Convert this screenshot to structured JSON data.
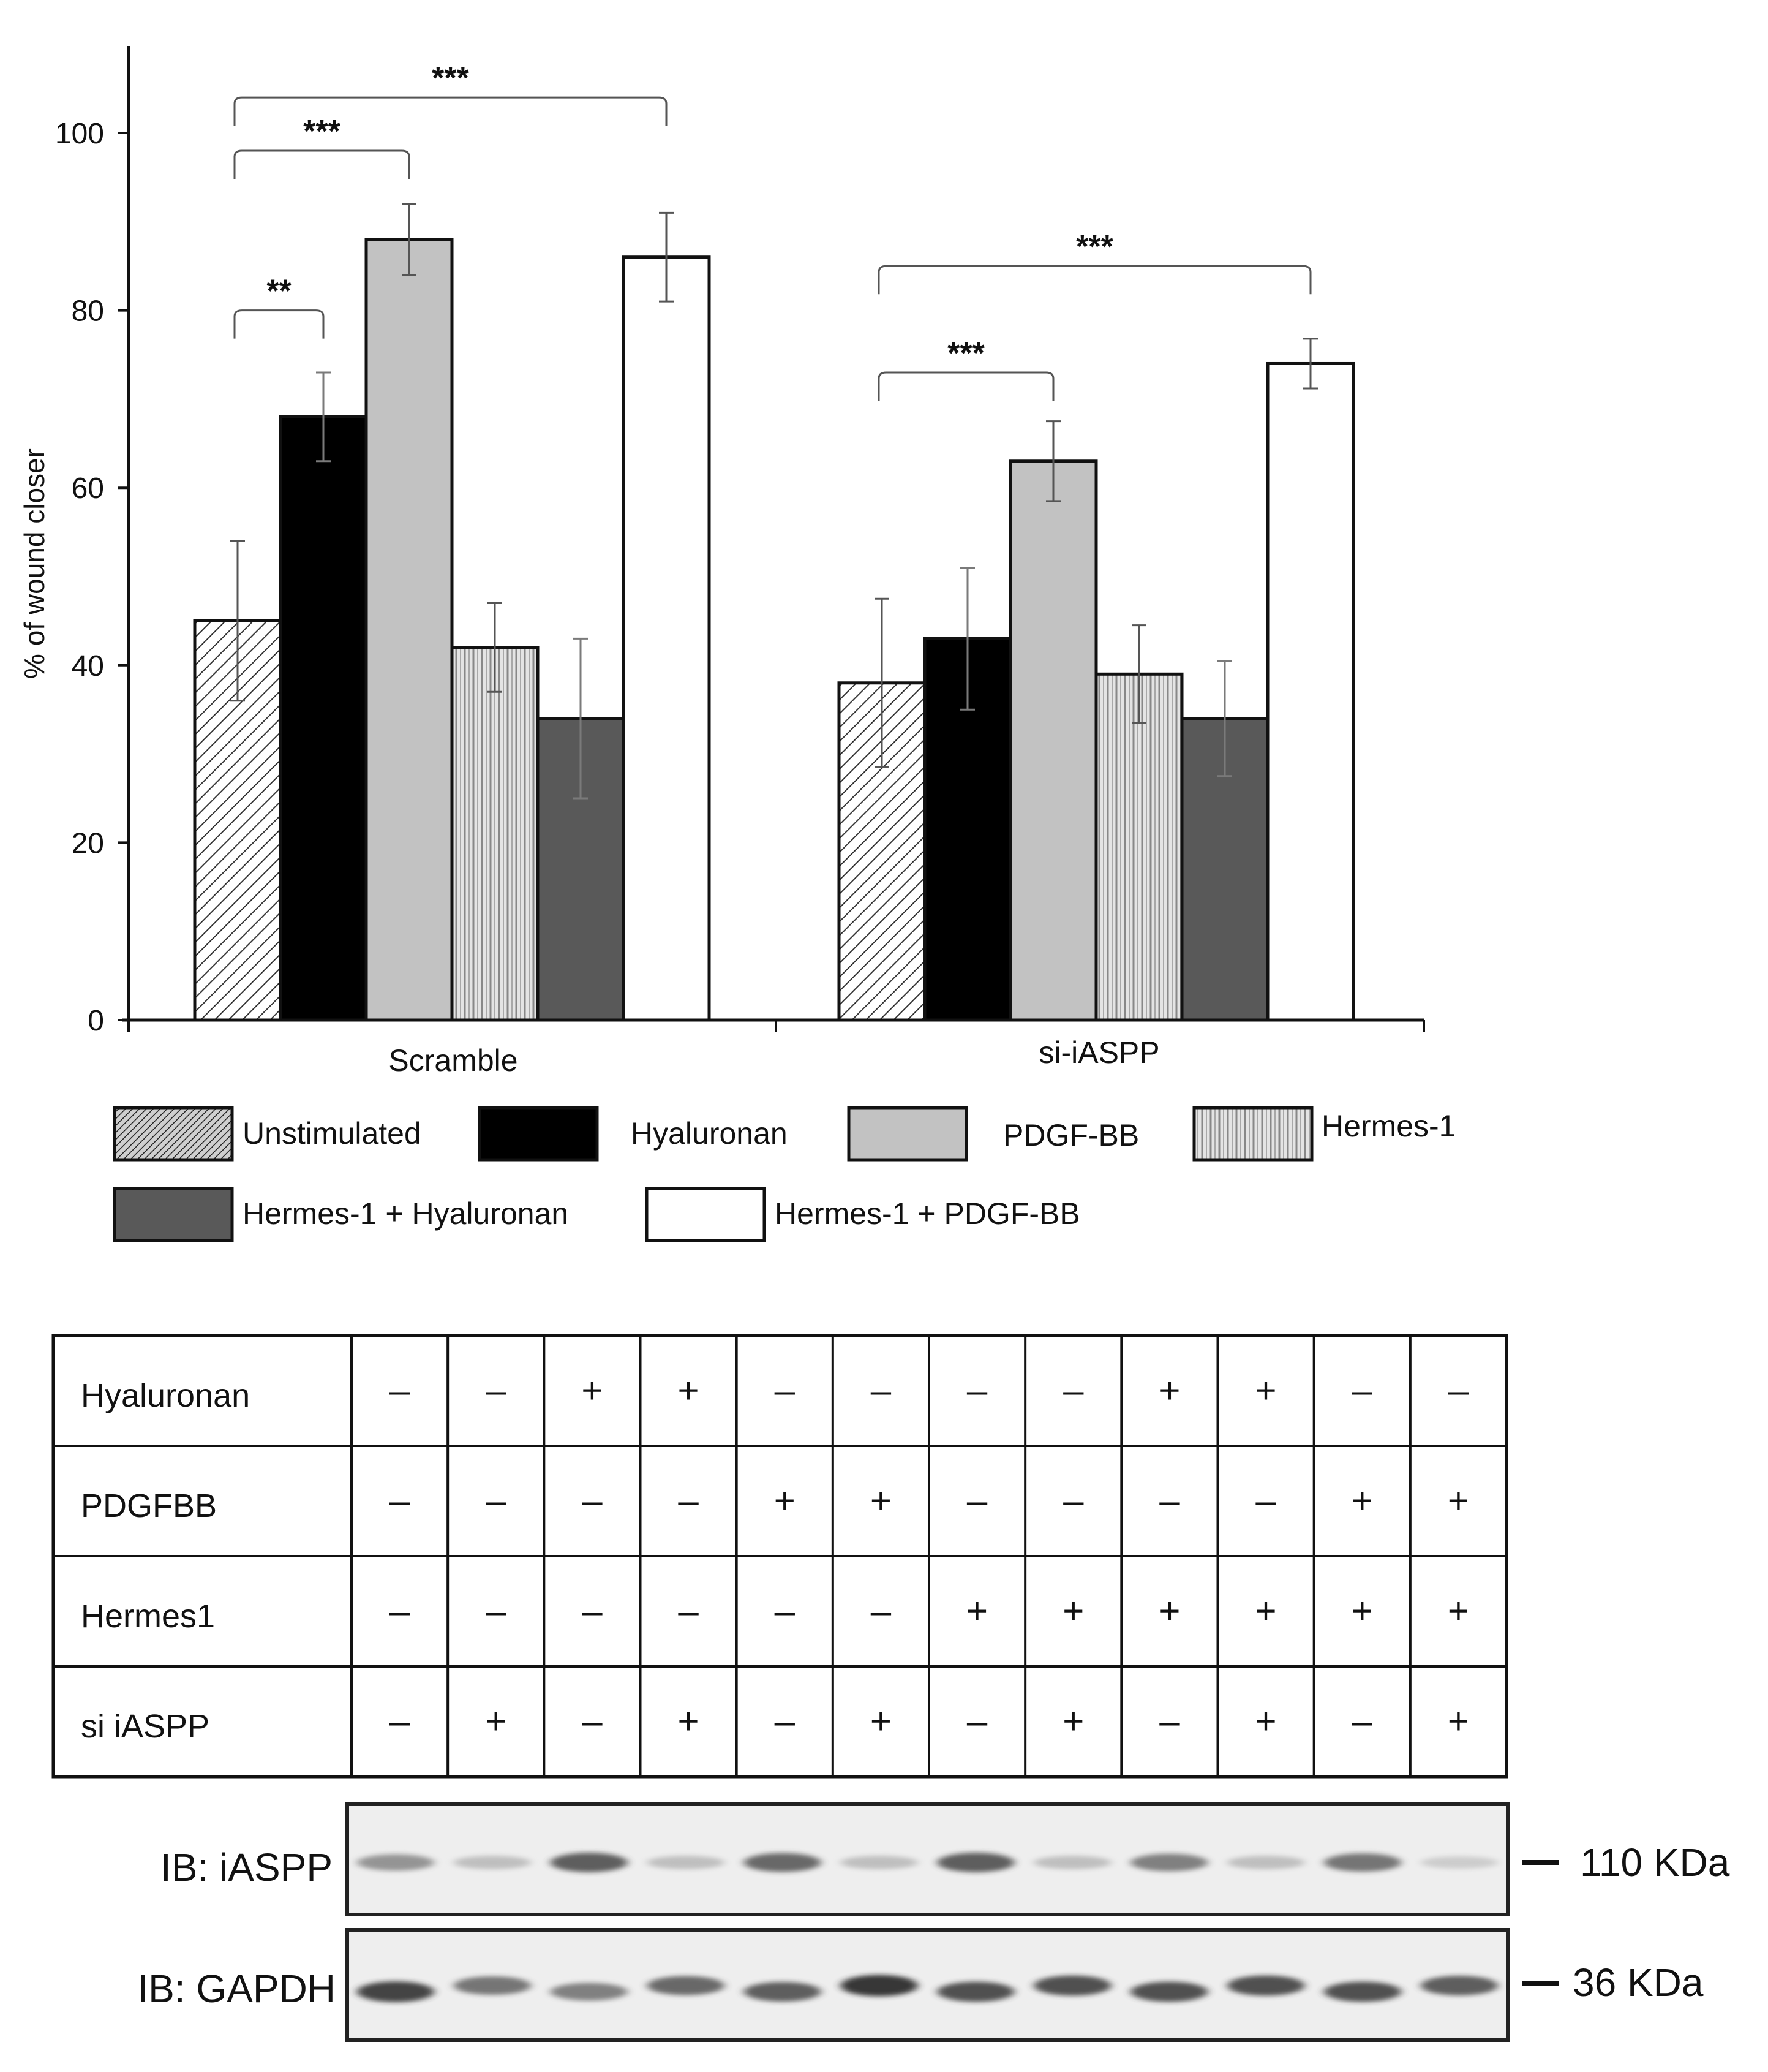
{
  "chart_data": {
    "type": "bar",
    "title": "",
    "xlabel": "",
    "ylabel": "% of wound closer",
    "ylim": [
      0,
      110
    ],
    "yticks": [
      0,
      20,
      40,
      60,
      80,
      100
    ],
    "grid": false,
    "categories": [
      "Scramble",
      "si-iASPP"
    ],
    "series": [
      {
        "name": "Unstimulated",
        "pattern": "diag-hatch",
        "values": [
          45,
          38
        ],
        "errors": [
          9,
          9.5
        ]
      },
      {
        "name": "Hyaluronan",
        "pattern": "black",
        "values": [
          68,
          43
        ],
        "errors": [
          5,
          8
        ]
      },
      {
        "name": "PDGF-BB",
        "pattern": "light-gray",
        "values": [
          88,
          63
        ],
        "errors": [
          4,
          4.5
        ]
      },
      {
        "name": "Hermes-1",
        "pattern": "vertical-stripes",
        "values": [
          42,
          39
        ],
        "errors": [
          5,
          5.5
        ]
      },
      {
        "name": "Hermes-1 + Hyaluronan",
        "pattern": "dark-gray",
        "values": [
          34,
          34
        ],
        "errors": [
          9,
          6.5
        ]
      },
      {
        "name": "Hermes-1 + PDGF-BB",
        "pattern": "white",
        "values": [
          86,
          74
        ],
        "errors": [
          5,
          2.8
        ]
      }
    ],
    "significance": [
      {
        "category": 0,
        "from": 0,
        "to": 1,
        "label": "**",
        "y": 80
      },
      {
        "category": 0,
        "from": 0,
        "to": 2,
        "label": "***",
        "y": 98
      },
      {
        "category": 0,
        "from": 0,
        "to": 5,
        "label": "***",
        "y": 104
      },
      {
        "category": 1,
        "from": 0,
        "to": 2,
        "label": "***",
        "y": 73
      },
      {
        "category": 1,
        "from": 0,
        "to": 5,
        "label": "***",
        "y": 85
      }
    ],
    "legend_position": "bottom"
  },
  "colors": {
    "black": "#000000",
    "light_gray": "#c2c2c2",
    "dark_gray": "#595959",
    "white": "#ffffff",
    "axis": "#111111"
  },
  "table": {
    "row_labels": [
      "Hyaluronan",
      "PDGFBB",
      "Hermes1",
      "si iASPP"
    ],
    "rows": [
      [
        "–",
        "–",
        "+",
        "+",
        "–",
        "–",
        "–",
        "–",
        "+",
        "+",
        "–",
        "–"
      ],
      [
        "–",
        "–",
        "–",
        "–",
        "+",
        "+",
        "–",
        "–",
        "–",
        "–",
        "+",
        "+"
      ],
      [
        "–",
        "–",
        "–",
        "–",
        "–",
        "–",
        "+",
        "+",
        "+",
        "+",
        "+",
        "+"
      ],
      [
        "–",
        "+",
        "–",
        "+",
        "–",
        "+",
        "–",
        "+",
        "–",
        "+",
        "–",
        "+"
      ]
    ]
  },
  "blots": [
    {
      "label": "IB: iASPP",
      "marker": "110 KDa",
      "intensities": [
        0.55,
        0.3,
        0.8,
        0.3,
        0.75,
        0.3,
        0.8,
        0.3,
        0.65,
        0.3,
        0.7,
        0.2
      ]
    },
    {
      "label": "IB: GAPDH",
      "marker": "36 KDa",
      "intensities": [
        0.9,
        0.7,
        0.65,
        0.75,
        0.8,
        0.95,
        0.85,
        0.85,
        0.85,
        0.85,
        0.85,
        0.8
      ]
    }
  ]
}
